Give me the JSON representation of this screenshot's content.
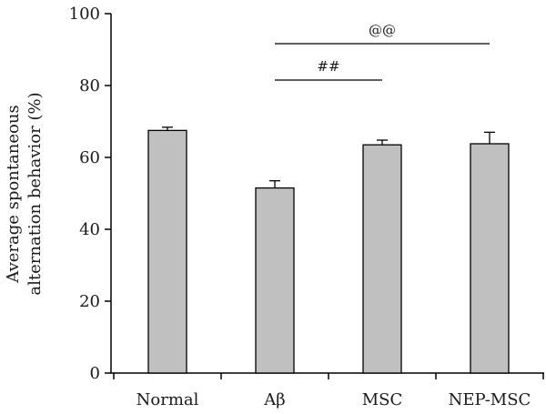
{
  "chart_data": {
    "type": "bar",
    "categories": [
      "Normal",
      "Aβ",
      "MSC",
      "NEP-MSC"
    ],
    "values": [
      67.5,
      51.5,
      63.5,
      63.8
    ],
    "errors": [
      0.9,
      2.0,
      1.3,
      3.2
    ],
    "ylabel_lines": [
      "Average spontaneous",
      "alternation behavior (%)"
    ],
    "ylim": [
      0,
      100
    ],
    "yticks": [
      0,
      20,
      40,
      60,
      80,
      100
    ],
    "grid": false,
    "bar_color": "#c0c0c0",
    "annotations": [
      {
        "label": "##",
        "from": "Aβ",
        "to": "MSC"
      },
      {
        "label": "@@",
        "from": "Aβ",
        "to": "NEP-MSC"
      }
    ]
  }
}
